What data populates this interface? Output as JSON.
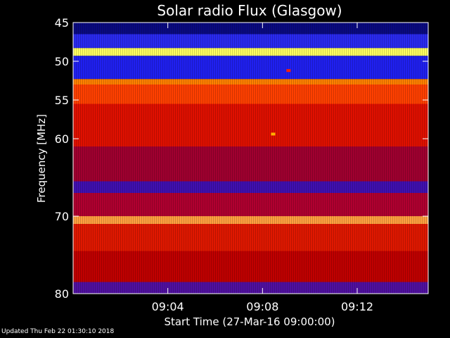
{
  "chart_data": {
    "type": "heatmap",
    "title": "Solar radio Flux (Glasgow)",
    "xlabel": "Start Time (27-Mar-16 09:00:00)",
    "ylabel": "Frequency [MHz]",
    "x_unit": "minutes after 09:00",
    "xlim": [
      0,
      15
    ],
    "ylim": [
      45,
      80
    ],
    "y_inverted": true,
    "x_ticks": [
      {
        "value": 4,
        "label": "09:04"
      },
      {
        "value": 8,
        "label": "09:08"
      },
      {
        "value": 12,
        "label": "09:12"
      }
    ],
    "y_ticks": [
      {
        "value": 45,
        "label": "45"
      },
      {
        "value": 50,
        "label": "50"
      },
      {
        "value": 55,
        "label": "55"
      },
      {
        "value": 60,
        "label": "60"
      },
      {
        "value": 70,
        "label": "70"
      },
      {
        "value": 80,
        "label": "80"
      }
    ],
    "colormap": [
      "#0000a0",
      "#2020ff",
      "#8000a0",
      "#c00000",
      "#ff2000",
      "#ff8000",
      "#ffff80"
    ],
    "bands": [
      {
        "from_mhz": 45.0,
        "to_mhz": 46.5,
        "color": "#0a0a80"
      },
      {
        "from_mhz": 46.5,
        "to_mhz": 48.3,
        "color": "#2a2af0"
      },
      {
        "from_mhz": 48.3,
        "to_mhz": 49.3,
        "color": "#ffff60"
      },
      {
        "from_mhz": 49.3,
        "to_mhz": 52.3,
        "color": "#2020f0"
      },
      {
        "from_mhz": 52.3,
        "to_mhz": 53.0,
        "color": "#ff8000"
      },
      {
        "from_mhz": 53.0,
        "to_mhz": 55.5,
        "color": "#ff4000"
      },
      {
        "from_mhz": 55.5,
        "to_mhz": 61.0,
        "color": "#e01000"
      },
      {
        "from_mhz": 61.0,
        "to_mhz": 65.5,
        "color": "#a00030"
      },
      {
        "from_mhz": 65.5,
        "to_mhz": 67.0,
        "color": "#4010b0"
      },
      {
        "from_mhz": 67.0,
        "to_mhz": 70.0,
        "color": "#b00030"
      },
      {
        "from_mhz": 70.0,
        "to_mhz": 71.0,
        "color": "#ffa040"
      },
      {
        "from_mhz": 71.0,
        "to_mhz": 74.5,
        "color": "#e01800"
      },
      {
        "from_mhz": 74.5,
        "to_mhz": 78.5,
        "color": "#c00000"
      },
      {
        "from_mhz": 78.5,
        "to_mhz": 80.0,
        "color": "#5010a0"
      }
    ],
    "bright_features": [
      {
        "time_min": 8.45,
        "freq_mhz": 59.4,
        "color": "#ffb000"
      },
      {
        "time_min": 9.1,
        "freq_mhz": 51.2,
        "color": "#ff2000"
      }
    ]
  },
  "footer": {
    "updated": "Updated Thu Feb 22 01:30:10 2018"
  }
}
